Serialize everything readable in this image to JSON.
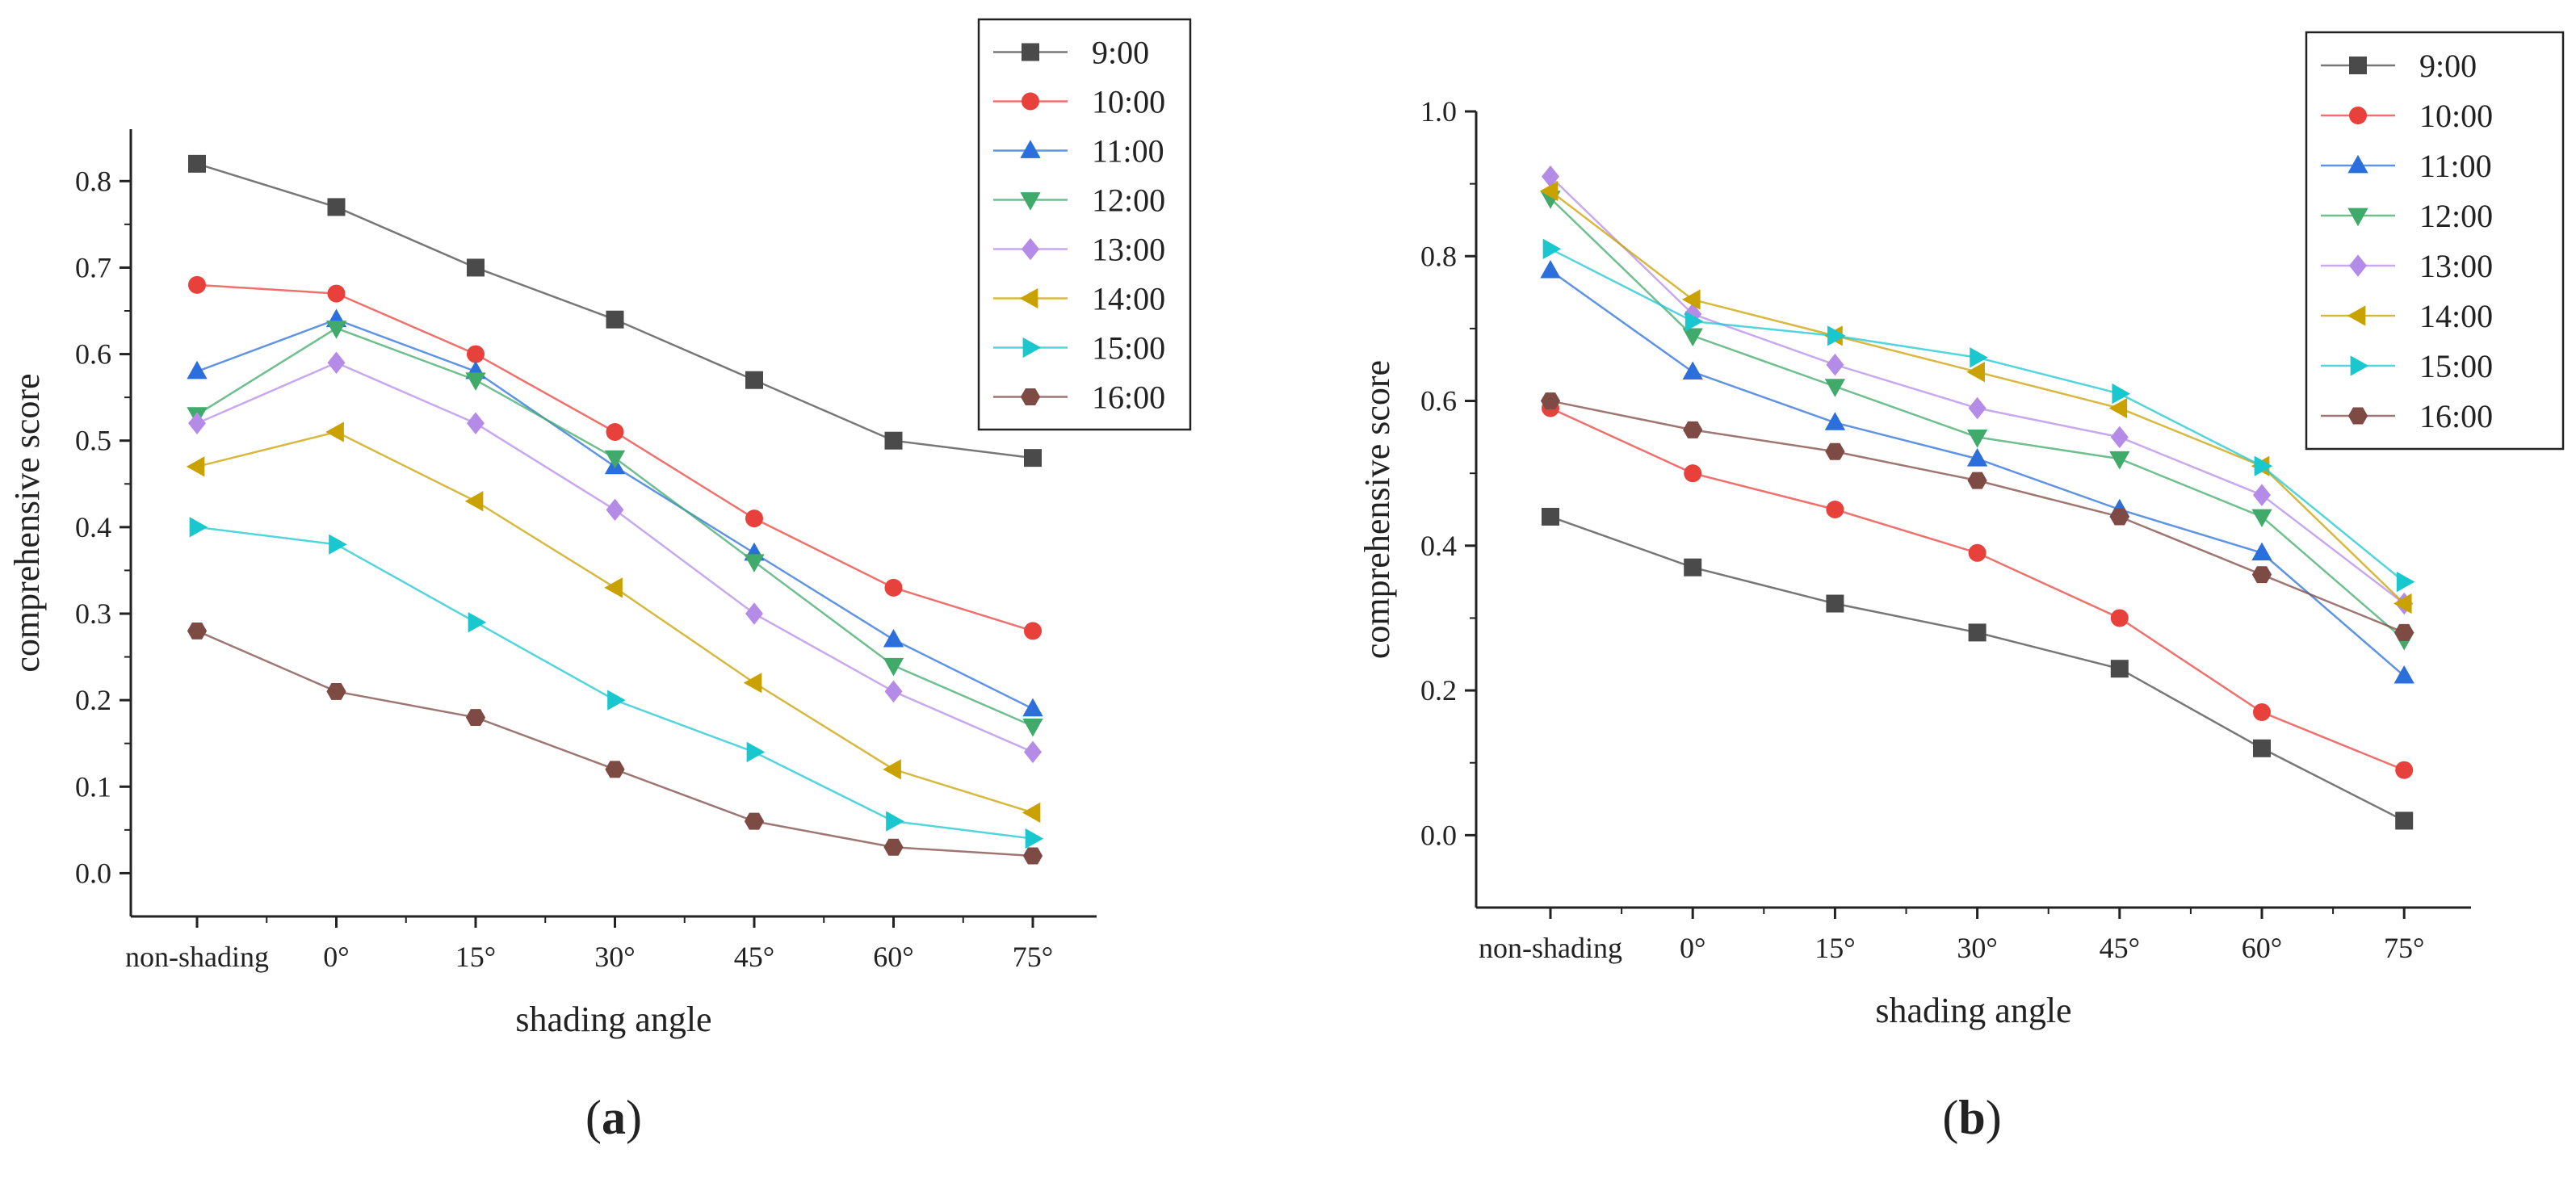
{
  "chart_data": [
    {
      "type": "line",
      "panel_label": "a",
      "xlabel": "shading angle",
      "ylabel": "comprehensive score",
      "categories": [
        "non-shading",
        "0°",
        "15°",
        "30°",
        "45°",
        "60°",
        "75°"
      ],
      "ylim": [
        -0.05,
        0.86
      ],
      "yticks": [
        "0.0",
        "0.1",
        "0.2",
        "0.3",
        "0.4",
        "0.5",
        "0.6",
        "0.7",
        "0.8"
      ],
      "legend_position": "top-right",
      "series": [
        {
          "name": "9:00",
          "color": "#4a4a4a",
          "marker": "square",
          "values": [
            0.82,
            0.77,
            0.7,
            0.64,
            0.57,
            0.5,
            0.48
          ]
        },
        {
          "name": "10:00",
          "color": "#e8413c",
          "marker": "circle",
          "values": [
            0.68,
            0.67,
            0.6,
            0.51,
            0.41,
            0.33,
            0.28
          ]
        },
        {
          "name": "11:00",
          "color": "#2a6fdb",
          "marker": "tri-up",
          "values": [
            0.58,
            0.64,
            0.58,
            0.47,
            0.37,
            0.27,
            0.19
          ]
        },
        {
          "name": "12:00",
          "color": "#3faa6a",
          "marker": "tri-down",
          "values": [
            0.53,
            0.63,
            0.57,
            0.48,
            0.36,
            0.24,
            0.17
          ]
        },
        {
          "name": "13:00",
          "color": "#b58be8",
          "marker": "diamond",
          "values": [
            0.52,
            0.59,
            0.52,
            0.42,
            0.3,
            0.21,
            0.14
          ]
        },
        {
          "name": "14:00",
          "color": "#c9a200",
          "marker": "tri-left",
          "values": [
            0.47,
            0.51,
            0.43,
            0.33,
            0.22,
            0.12,
            0.07
          ]
        },
        {
          "name": "15:00",
          "color": "#19c7cf",
          "marker": "tri-right",
          "values": [
            0.4,
            0.38,
            0.29,
            0.2,
            0.14,
            0.06,
            0.04
          ]
        },
        {
          "name": "16:00",
          "color": "#7d4a44",
          "marker": "hexagon",
          "values": [
            0.28,
            0.21,
            0.18,
            0.12,
            0.06,
            0.03,
            0.02
          ]
        }
      ]
    },
    {
      "type": "line",
      "panel_label": "b",
      "xlabel": "shading angle",
      "ylabel": "comprehensive score",
      "categories": [
        "non-shading",
        "0°",
        "15°",
        "30°",
        "45°",
        "60°",
        "75°"
      ],
      "ylim": [
        -0.1,
        1.0
      ],
      "yticks": [
        "0.0",
        "0.2",
        "0.4",
        "0.6",
        "0.8",
        "1.0"
      ],
      "legend_position": "top-right",
      "series": [
        {
          "name": "9:00",
          "color": "#4a4a4a",
          "marker": "square",
          "values": [
            0.44,
            0.37,
            0.32,
            0.28,
            0.23,
            0.12,
            0.02
          ]
        },
        {
          "name": "10:00",
          "color": "#e8413c",
          "marker": "circle",
          "values": [
            0.59,
            0.5,
            0.45,
            0.39,
            0.3,
            0.17,
            0.09
          ]
        },
        {
          "name": "11:00",
          "color": "#2a6fdb",
          "marker": "tri-up",
          "values": [
            0.78,
            0.64,
            0.57,
            0.52,
            0.45,
            0.39,
            0.22
          ]
        },
        {
          "name": "12:00",
          "color": "#3faa6a",
          "marker": "tri-down",
          "values": [
            0.88,
            0.69,
            0.62,
            0.55,
            0.52,
            0.44,
            0.27
          ]
        },
        {
          "name": "13:00",
          "color": "#b58be8",
          "marker": "diamond",
          "values": [
            0.91,
            0.72,
            0.65,
            0.59,
            0.55,
            0.47,
            0.32
          ]
        },
        {
          "name": "14:00",
          "color": "#c9a200",
          "marker": "tri-left",
          "values": [
            0.89,
            0.74,
            0.69,
            0.64,
            0.59,
            0.51,
            0.32
          ]
        },
        {
          "name": "15:00",
          "color": "#19c7cf",
          "marker": "tri-right",
          "values": [
            0.81,
            0.71,
            0.69,
            0.66,
            0.61,
            0.51,
            0.35
          ]
        },
        {
          "name": "16:00",
          "color": "#7d4a44",
          "marker": "hexagon",
          "values": [
            0.6,
            0.56,
            0.53,
            0.49,
            0.44,
            0.36,
            0.28
          ]
        }
      ]
    }
  ]
}
